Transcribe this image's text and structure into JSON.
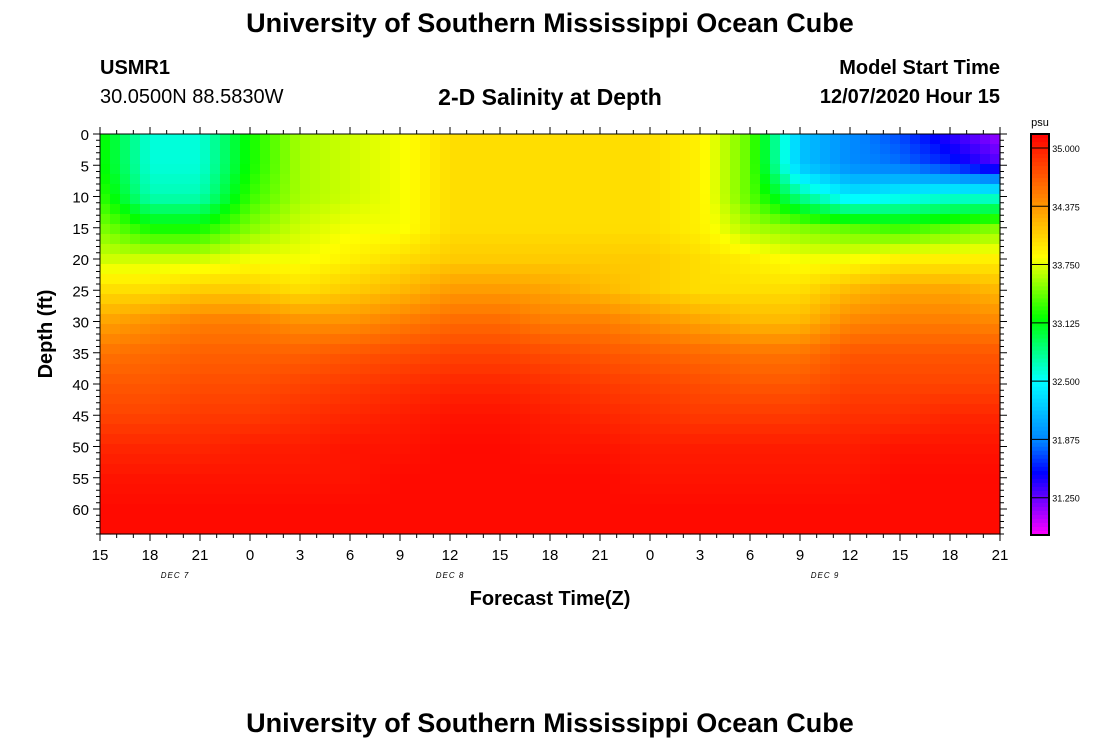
{
  "page": {
    "main_title": "University of Southern Mississippi Ocean Cube",
    "footer_title": "University of Southern Mississippi Ocean Cube",
    "station_id": "USMR1",
    "station_coords": "30.0500N 88.5830W",
    "start_label": "Model Start Time",
    "start_value": "12/07/2020 Hour 15"
  },
  "colors": {
    "scale": [
      "#ff00ff",
      "#8000ff",
      "#0000ff",
      "#0080ff",
      "#00c0ff",
      "#00ffff",
      "#00ff80",
      "#00ff00",
      "#80ff00",
      "#ffff00",
      "#ffc000",
      "#ff8000",
      "#ff4000",
      "#ff0000"
    ]
  },
  "chart_data": {
    "type": "heatmap",
    "title": "2-D Salinity at Depth",
    "xlabel": "Forecast Time(Z)",
    "ylabel": "Depth (ft)",
    "x_ticks": [
      "15",
      "18",
      "21",
      "0",
      "3",
      "6",
      "9",
      "12",
      "15",
      "18",
      "21",
      "0",
      "3",
      "6",
      "9",
      "12",
      "15",
      "18",
      "21"
    ],
    "x_hours": [
      0,
      3,
      6,
      9,
      12,
      15,
      18,
      21,
      24,
      27,
      30,
      33,
      36,
      39,
      42,
      45,
      48,
      51,
      54
    ],
    "date_labels": [
      {
        "text": "DEC 7",
        "hour": 4.5
      },
      {
        "text": "DEC 8",
        "hour": 21
      },
      {
        "text": "DEC 9",
        "hour": 43.5
      }
    ],
    "y_ticks": [
      0,
      5,
      10,
      15,
      20,
      25,
      30,
      35,
      40,
      45,
      50,
      55,
      60
    ],
    "ylim": [
      0,
      64
    ],
    "colorbar": {
      "unit": "psu",
      "labels": [
        "35.000",
        "34.375",
        "33.750",
        "33.125",
        "32.500",
        "31.875",
        "31.250"
      ],
      "label_values": [
        35.0,
        34.375,
        33.75,
        33.125,
        32.5,
        31.875,
        31.25
      ],
      "range": [
        30.85,
        35.15
      ]
    },
    "grid_hours": [
      0,
      3,
      6,
      9,
      12,
      15,
      18,
      21,
      24,
      27,
      30,
      33,
      36,
      39,
      42,
      45,
      48,
      51,
      54
    ],
    "grid_depths": [
      0,
      5,
      10,
      15,
      20,
      25,
      30,
      35,
      40,
      45,
      50,
      55,
      60,
      64
    ],
    "salinity": [
      [
        33.2,
        32.6,
        32.6,
        33.2,
        33.6,
        33.7,
        33.8,
        34.0,
        34.0,
        34.0,
        34.0,
        34.0,
        33.9,
        33.4,
        32.2,
        31.9,
        31.7,
        31.4,
        31.1
      ],
      [
        33.2,
        32.6,
        32.6,
        33.2,
        33.6,
        33.7,
        33.8,
        34.0,
        34.0,
        34.0,
        34.0,
        34.0,
        33.9,
        33.4,
        32.2,
        31.9,
        31.8,
        31.6,
        31.3
      ],
      [
        33.3,
        32.7,
        32.7,
        33.3,
        33.6,
        33.7,
        33.8,
        34.0,
        34.0,
        34.0,
        34.0,
        34.0,
        33.9,
        33.4,
        32.8,
        32.4,
        32.5,
        32.6,
        32.6
      ],
      [
        33.5,
        33.2,
        33.2,
        33.5,
        33.7,
        33.8,
        33.8,
        34.0,
        34.0,
        34.0,
        34.0,
        34.0,
        33.9,
        33.6,
        33.5,
        33.4,
        33.3,
        33.4,
        33.5
      ],
      [
        33.7,
        33.7,
        33.7,
        33.8,
        33.8,
        33.9,
        34.0,
        34.1,
        34.1,
        34.1,
        34.1,
        34.1,
        34.0,
        33.9,
        33.8,
        33.8,
        33.9,
        33.9,
        33.9
      ],
      [
        34.0,
        34.0,
        34.1,
        34.1,
        34.0,
        34.1,
        34.2,
        34.35,
        34.35,
        34.3,
        34.2,
        34.1,
        34.0,
        34.0,
        34.0,
        34.2,
        34.3,
        34.3,
        34.2
      ],
      [
        34.3,
        34.4,
        34.5,
        34.5,
        34.4,
        34.4,
        34.5,
        34.6,
        34.6,
        34.5,
        34.5,
        34.4,
        34.3,
        34.2,
        34.2,
        34.45,
        34.5,
        34.5,
        34.45
      ],
      [
        34.55,
        34.6,
        34.65,
        34.65,
        34.65,
        34.7,
        34.75,
        34.8,
        34.8,
        34.75,
        34.7,
        34.65,
        34.6,
        34.55,
        34.55,
        34.7,
        34.7,
        34.7,
        34.7
      ],
      [
        34.7,
        34.7,
        34.75,
        34.75,
        34.8,
        34.85,
        34.9,
        34.95,
        34.95,
        34.9,
        34.85,
        34.8,
        34.75,
        34.7,
        34.7,
        34.8,
        34.8,
        34.8,
        34.8
      ],
      [
        34.8,
        34.8,
        34.85,
        34.85,
        34.9,
        34.95,
        35.0,
        35.05,
        35.05,
        35.0,
        34.95,
        34.9,
        34.85,
        34.85,
        34.85,
        34.9,
        34.9,
        34.95,
        34.95
      ],
      [
        34.95,
        34.95,
        34.95,
        35.0,
        35.0,
        35.05,
        35.05,
        35.1,
        35.1,
        35.05,
        35.05,
        35.0,
        35.0,
        35.0,
        35.0,
        35.0,
        35.05,
        35.05,
        35.05
      ],
      [
        35.05,
        35.05,
        35.05,
        35.05,
        35.05,
        35.05,
        35.1,
        35.1,
        35.1,
        35.1,
        35.1,
        35.05,
        35.05,
        35.05,
        35.05,
        35.05,
        35.1,
        35.1,
        35.1
      ],
      [
        35.1,
        35.1,
        35.1,
        35.1,
        35.1,
        35.1,
        35.1,
        35.1,
        35.1,
        35.1,
        35.1,
        35.1,
        35.1,
        35.1,
        35.1,
        35.1,
        35.1,
        35.1,
        35.1
      ],
      [
        35.1,
        35.1,
        35.1,
        35.1,
        35.1,
        35.1,
        35.1,
        35.1,
        35.1,
        35.1,
        35.1,
        35.1,
        35.1,
        35.1,
        35.1,
        35.1,
        35.1,
        35.1,
        35.1
      ]
    ]
  }
}
